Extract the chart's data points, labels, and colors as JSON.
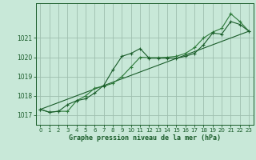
{
  "xlabel": "Graphe pression niveau de la mer (hPa)",
  "bg_color": "#c8e8d8",
  "grid_color": "#9dbfaf",
  "line_color_dark": "#1a5c2a",
  "line_color_mid": "#2d7a3a",
  "xlim": [
    -0.5,
    23.5
  ],
  "ylim": [
    1016.5,
    1022.8
  ],
  "yticks": [
    1017,
    1018,
    1019,
    1020,
    1021
  ],
  "xticks": [
    0,
    1,
    2,
    3,
    4,
    5,
    6,
    7,
    8,
    9,
    10,
    11,
    12,
    13,
    14,
    15,
    16,
    17,
    18,
    19,
    20,
    21,
    22,
    23
  ],
  "series1_x": [
    0,
    1,
    2,
    3,
    4,
    5,
    6,
    7,
    8,
    9,
    10,
    11,
    12,
    13,
    14,
    15,
    16,
    17,
    18,
    19,
    20,
    21,
    22,
    23
  ],
  "series1_y": [
    1017.3,
    1017.15,
    1017.2,
    1017.55,
    1017.75,
    1017.85,
    1018.15,
    1018.55,
    1019.35,
    1020.05,
    1020.2,
    1020.45,
    1019.95,
    1019.95,
    1019.95,
    1019.95,
    1020.05,
    1020.2,
    1020.65,
    1021.25,
    1021.2,
    1021.85,
    1021.7,
    1021.35
  ],
  "series2_x": [
    0,
    1,
    2,
    3,
    4,
    5,
    6,
    7,
    8,
    9,
    10,
    11,
    12,
    13,
    14,
    15,
    16,
    17,
    18,
    19,
    20,
    21,
    22,
    23
  ],
  "series2_y": [
    1017.3,
    1017.15,
    1017.2,
    1017.2,
    1017.75,
    1018.0,
    1018.4,
    1018.5,
    1018.65,
    1019.0,
    1019.5,
    1020.0,
    1019.98,
    1019.98,
    1020.0,
    1020.05,
    1020.2,
    1020.5,
    1021.0,
    1021.3,
    1021.5,
    1022.25,
    1021.85,
    1021.35
  ],
  "series3_x": [
    0,
    23
  ],
  "series3_y": [
    1017.3,
    1021.35
  ]
}
